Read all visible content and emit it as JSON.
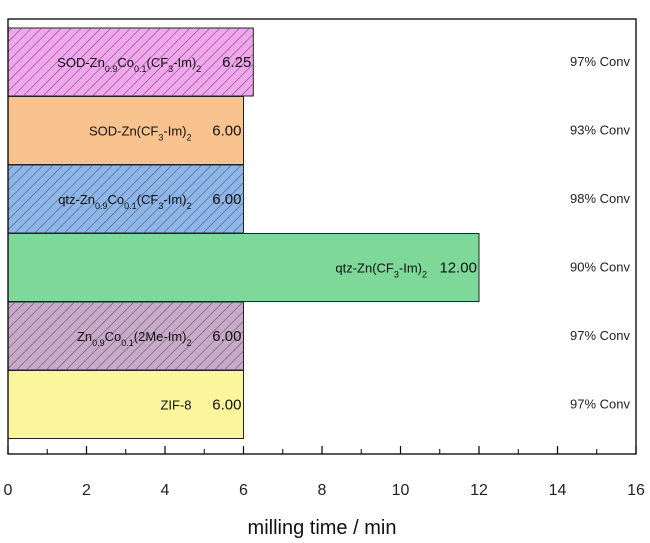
{
  "chart_data": {
    "type": "bar",
    "orientation": "horizontal",
    "title": "",
    "xlabel": "milling time / min",
    "ylabel": "",
    "xlim": [
      0,
      16
    ],
    "xticks": [
      0,
      2,
      4,
      6,
      8,
      10,
      12,
      14,
      16
    ],
    "grid": false,
    "bars": [
      {
        "name": "ZIF-8",
        "label_html": "ZIF-8",
        "value": 6.0,
        "value_label": "6.00",
        "conversion": "97% Conv",
        "color": "#fbf59c",
        "hatched": false
      },
      {
        "name": "Zn0.9Co0.1(2Me-Im)2",
        "label_html": "Zn<tspan baseline-shift='sub' font-size='9'>0.9</tspan>Co<tspan baseline-shift='sub' font-size='9'>0.1</tspan>(2Me-Im)<tspan baseline-shift='sub' font-size='9'>2</tspan>",
        "value": 6.0,
        "value_label": "6.00",
        "conversion": "97% Conv",
        "color": "#c9a9c9",
        "hatched": true
      },
      {
        "name": "qtz-Zn(CF3-Im)2",
        "label_html": "qtz-Zn(CF<tspan baseline-shift='sub' font-size='9'>3</tspan>-Im)<tspan baseline-shift='sub' font-size='9'>2</tspan>",
        "value": 12.0,
        "value_label": "12.00",
        "conversion": "90% Conv",
        "color": "#7dd89a",
        "hatched": false
      },
      {
        "name": "qtz-Zn0.9Co0.1(CF3-Im)2",
        "label_html": "qtz-Zn<tspan baseline-shift='sub' font-size='9'>0.9</tspan>Co<tspan baseline-shift='sub' font-size='9'>0.1</tspan>(CF<tspan baseline-shift='sub' font-size='9'>3</tspan>-Im)<tspan baseline-shift='sub' font-size='9'>2</tspan>",
        "value": 6.0,
        "value_label": "6.00",
        "conversion": "98% Conv",
        "color": "#8db6ea",
        "hatched": true
      },
      {
        "name": "SOD-Zn(CF3-Im)2",
        "label_html": "SOD-Zn(CF<tspan baseline-shift='sub' font-size='9'>3</tspan>-Im)<tspan baseline-shift='sub' font-size='9'>2</tspan>",
        "value": 6.0,
        "value_label": "6.00",
        "conversion": "93% Conv",
        "color": "#f9c38f",
        "hatched": false
      },
      {
        "name": "SOD-Zn0.9Co0.1(CF3-Im)2",
        "label_html": "SOD-Zn<tspan baseline-shift='sub' font-size='9'>0.9</tspan>Co<tspan baseline-shift='sub' font-size='9'>0.1</tspan>(CF<tspan baseline-shift='sub' font-size='9'>3</tspan>-Im)<tspan baseline-shift='sub' font-size='9'>2</tspan>",
        "value": 6.25,
        "value_label": "6.25",
        "conversion": "97% Conv",
        "color": "#f3a6ef",
        "hatched": true
      }
    ]
  }
}
